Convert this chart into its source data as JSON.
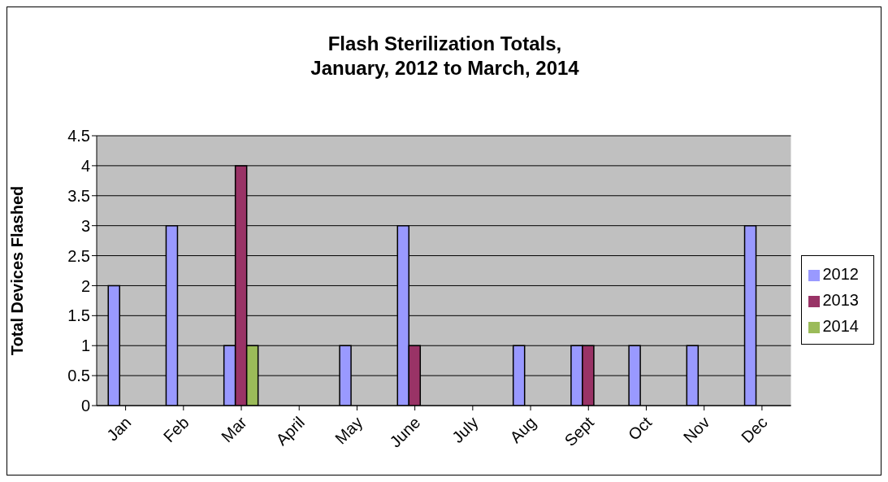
{
  "chart_data": {
    "type": "bar",
    "title": "Flash Sterilization Totals,\nJanuary, 2012 to March, 2014",
    "ylabel": "Total Devices Flashed",
    "categories": [
      "Jan",
      "Feb",
      "Mar",
      "April",
      "May",
      "June",
      "July",
      "Aug",
      "Sept",
      "Oct",
      "Nov",
      "Dec"
    ],
    "series": [
      {
        "name": "2012",
        "color": "#9999ff",
        "values": [
          2,
          3,
          1,
          0,
          1,
          3,
          0,
          1,
          1,
          1,
          1,
          3
        ]
      },
      {
        "name": "2013",
        "color": "#993366",
        "values": [
          0,
          0,
          4,
          0,
          0,
          1,
          0,
          0,
          1,
          0,
          0,
          0
        ]
      },
      {
        "name": "2014",
        "color": "#9bbb59",
        "values": [
          0,
          0,
          1,
          null,
          null,
          null,
          null,
          null,
          null,
          null,
          null,
          null
        ]
      }
    ],
    "ylim": [
      0,
      4.5
    ],
    "yticks": [
      0,
      0.5,
      1,
      1.5,
      2,
      2.5,
      3,
      3.5,
      4,
      4.5
    ],
    "grid": "y",
    "legend": "right"
  }
}
